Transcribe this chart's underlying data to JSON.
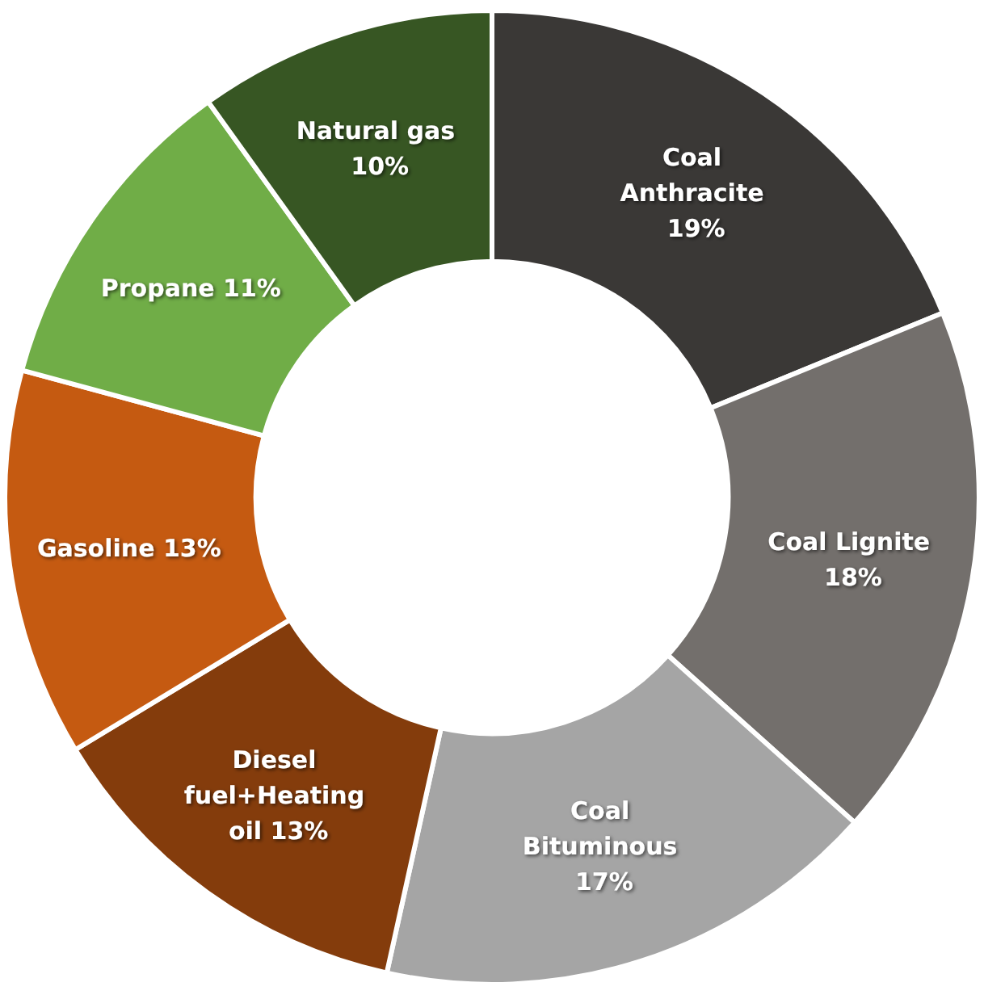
{
  "chart_data": {
    "type": "donut",
    "categories": [
      "Coal Anthracite",
      "Coal Lignite",
      "Coal Bituminous",
      "Diesel fuel+Heating oil",
      "Gasoline",
      "Propane",
      "Natural gas"
    ],
    "values": [
      19,
      18,
      17,
      13,
      13,
      11,
      10
    ],
    "value_labels": [
      "19%",
      "18%",
      "17%",
      "13%",
      "13%",
      "11%",
      "10%"
    ],
    "colors": [
      "#3a3836",
      "#736f6c",
      "#a5a5a5",
      "#843c0c",
      "#c55a11",
      "#70ad47",
      "#375623"
    ],
    "legend": false
  }
}
